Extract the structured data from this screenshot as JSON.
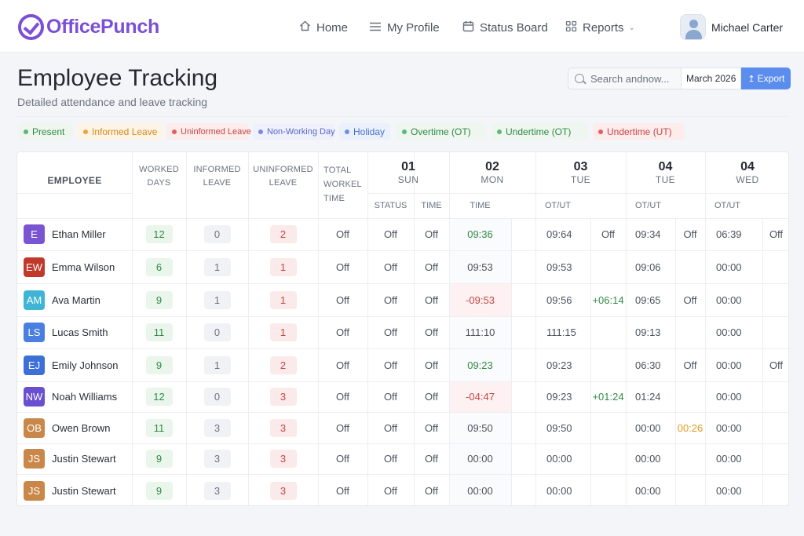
{
  "brand": {
    "name": "OfficePunch",
    "color": "#7b4fd6"
  },
  "nav": {
    "home": {
      "label": "Home",
      "icon": "home-icon"
    },
    "profile": {
      "label": "My Profile",
      "icon": "menu-lines-icon"
    },
    "status": {
      "label": "Status Board",
      "icon": "calendar-icon"
    },
    "reports": {
      "label": "Reports",
      "icon": "grid-icon"
    }
  },
  "user": {
    "name": "Michael Carter"
  },
  "page": {
    "title": "Employee Tracking",
    "subtitle": "Detailed attendance and leave tracking"
  },
  "toolbar": {
    "search_placeholder": "Search andnow...",
    "month": "March 2026",
    "export_label": "Export"
  },
  "legend": [
    {
      "label": "Present",
      "text_color": "#2f8a47",
      "bg": "#eef6ef",
      "dot": "#5cb874"
    },
    {
      "label": "Informed Leave",
      "text_color": "#d48a1c",
      "bg": "#fdf4e6",
      "dot": "#e9a53a"
    },
    {
      "label": "Uninformed Leave",
      "text_color": "#c94545",
      "bg": "#fcecec",
      "dot": "#e06060"
    },
    {
      "label": "Non-Working Day",
      "text_color": "#5a67c9",
      "bg": "#eef0fb",
      "dot": "#7b88e0"
    },
    {
      "label": "Holiday",
      "text_color": "#4a6fd0",
      "bg": "#eaf0fc",
      "dot": "#6f8fe0"
    },
    {
      "label": "Overtime (OT)",
      "text_color": "#2f8a47",
      "bg": "#eef6ef",
      "dot": "#5cb874"
    },
    {
      "label": "Undertime (OT)",
      "text_color": "#2f8a47",
      "bg": "#eef6ef",
      "dot": "#5cb874"
    },
    {
      "label": "Undertime (UT)",
      "text_color": "#c94545",
      "bg": "#fcecec",
      "dot": "#e06060"
    }
  ],
  "table": {
    "headers": {
      "employee": "EMPLOYEE",
      "worked": "WORKED DAYS",
      "informed": "INFORMED LEAVE",
      "uninformed": "UNINFORMED LEAVE",
      "total": "TOTAL WORKEL TIME"
    },
    "days": [
      {
        "num": "01",
        "name": "SUN",
        "subs": [
          "STATUS",
          "TIME"
        ]
      },
      {
        "num": "02",
        "name": "MON",
        "subs": [
          "TIME"
        ]
      },
      {
        "num": "03",
        "name": "TUE",
        "subs": [
          "OT/UT"
        ]
      },
      {
        "num": "04",
        "name": "TUE",
        "subs": [
          "OT/UT"
        ]
      },
      {
        "num": "04",
        "name": "WED",
        "subs": [
          "OT/UT"
        ]
      }
    ],
    "rows": [
      {
        "initials": "E",
        "avatar_color": "#7a55d1",
        "name": "Ethan Miller",
        "worked": "12",
        "informed": "0",
        "uninformed": "2",
        "total": "Off",
        "sun_status": "Off",
        "sun_time": "Off",
        "mon_time": "09:36",
        "mon_tone": "green",
        "tue_time": "09:64",
        "tue_ot": "Off",
        "tue_ot_tone": "plain",
        "tue2_time": "09:34",
        "tue2_ot": "Off",
        "tue2_ot_tone": "plain",
        "wed_time": "06:39",
        "wed_ot": "Off"
      },
      {
        "initials": "EW",
        "avatar_color": "#c0392b",
        "name": "Emma Wilson",
        "worked": "6",
        "informed": "1",
        "uninformed": "1",
        "total": "Off",
        "sun_status": "Off",
        "sun_time": "Off",
        "mon_time": "09:53",
        "mon_tone": "plain",
        "tue_time": "09:53",
        "tue_ot": "",
        "tue_ot_tone": "plain",
        "tue2_time": "09:06",
        "tue2_ot": "",
        "tue2_ot_tone": "plain",
        "wed_time": "00:00",
        "wed_ot": ""
      },
      {
        "initials": "AM",
        "avatar_color": "#3fb5d6",
        "name": "Ava Martin",
        "worked": "9",
        "informed": "1",
        "uninformed": "1",
        "total": "Off",
        "sun_status": "Off",
        "sun_time": "Off",
        "mon_time": "-09:53",
        "mon_tone": "red",
        "tue_time": "09:56",
        "tue_ot": "+06:14",
        "tue_ot_tone": "green",
        "tue2_time": "09:65",
        "tue2_ot": "Off",
        "tue2_ot_tone": "plain",
        "wed_time": "00:00",
        "wed_ot": ""
      },
      {
        "initials": "LS",
        "avatar_color": "#4a7ee0",
        "name": "Lucas Smith",
        "worked": "11",
        "informed": "0",
        "uninformed": "1",
        "total": "Off",
        "sun_status": "Off",
        "sun_time": "Off",
        "mon_time": "111:10",
        "mon_tone": "plain",
        "tue_time": "111:15",
        "tue_ot": "",
        "tue_ot_tone": "plain",
        "tue2_time": "09:13",
        "tue2_ot": "",
        "tue2_ot_tone": "plain",
        "wed_time": "00:00",
        "wed_ot": ""
      },
      {
        "initials": "EJ",
        "avatar_color": "#3c6fd8",
        "name": "Emily Johnson",
        "worked": "9",
        "informed": "1",
        "uninformed": "2",
        "total": "Off",
        "sun_status": "Off",
        "sun_time": "Off",
        "mon_time": "09:23",
        "mon_tone": "green",
        "tue_time": "09:23",
        "tue_ot": "",
        "tue_ot_tone": "plain",
        "tue2_time": "06:30",
        "tue2_ot": "Off",
        "tue2_ot_tone": "plain",
        "wed_time": "00:00",
        "wed_ot": "Off"
      },
      {
        "initials": "NW",
        "avatar_color": "#6a4fd0",
        "name": "Noah Williams",
        "worked": "12",
        "informed": "0",
        "uninformed": "3",
        "total": "Off",
        "sun_status": "Off",
        "sun_time": "Off",
        "mon_time": "-04:47",
        "mon_tone": "red",
        "tue_time": "09:23",
        "tue_ot": "+01:24",
        "tue_ot_tone": "green",
        "tue2_time": "01:24",
        "tue2_ot": "",
        "tue2_ot_tone": "plain",
        "wed_time": "00:00",
        "wed_ot": ""
      },
      {
        "initials": "OB",
        "avatar_color": "#c9874a",
        "name": "Owen Brown",
        "worked": "11",
        "informed": "3",
        "uninformed": "3",
        "total": "Off",
        "sun_status": "Off",
        "sun_time": "Off",
        "mon_time": "09:50",
        "mon_tone": "plain",
        "tue_time": "09:50",
        "tue_ot": "",
        "tue_ot_tone": "plain",
        "tue2_time": "00:00",
        "tue2_ot": "00:26",
        "tue2_ot_tone": "orange",
        "wed_time": "00:00",
        "wed_ot": ""
      },
      {
        "initials": "JS",
        "avatar_color": "#c9874a",
        "name": "Justin Stewart",
        "worked": "9",
        "informed": "3",
        "uninformed": "3",
        "total": "Off",
        "sun_status": "Off",
        "sun_time": "Off",
        "mon_time": "00:00",
        "mon_tone": "plain",
        "tue_time": "00:00",
        "tue_ot": "",
        "tue_ot_tone": "plain",
        "tue2_time": "00:00",
        "tue2_ot": "",
        "tue2_ot_tone": "plain",
        "wed_time": "00:00",
        "wed_ot": ""
      },
      {
        "initials": "JS",
        "avatar_color": "#c9874a",
        "name": "Justin Stewart",
        "worked": "9",
        "informed": "3",
        "uninformed": "3",
        "total": "Off",
        "sun_status": "Off",
        "sun_time": "Off",
        "mon_time": "00:00",
        "mon_tone": "plain",
        "tue_time": "00:00",
        "tue_ot": "",
        "tue_ot_tone": "plain",
        "tue2_time": "00:00",
        "tue2_ot": "",
        "tue2_ot_tone": "plain",
        "wed_time": "00:00",
        "wed_ot": ""
      }
    ]
  }
}
